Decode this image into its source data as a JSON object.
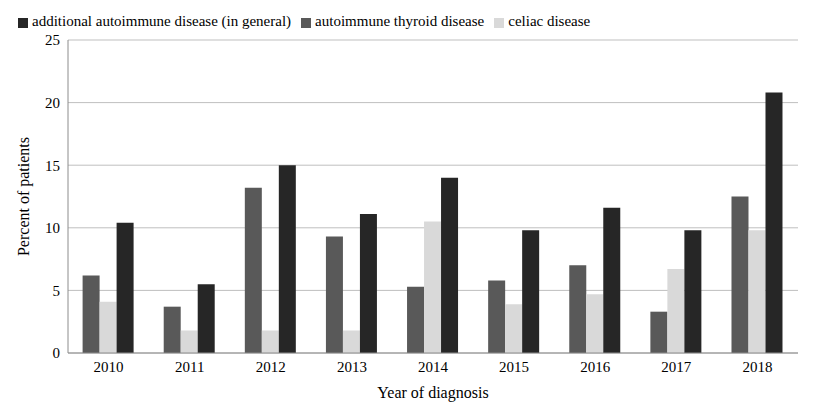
{
  "chart_data": {
    "type": "bar",
    "x_label": "Year of diagnosis",
    "y_label": "Percent of patients",
    "categories": [
      "2010",
      "2011",
      "2012",
      "2013",
      "2014",
      "2015",
      "2016",
      "2017",
      "2018"
    ],
    "series": [
      {
        "name": "autoimmune thyroid disease",
        "color": "#595959",
        "values": [
          6.2,
          3.7,
          13.2,
          9.3,
          5.3,
          5.8,
          7.0,
          3.3,
          12.5
        ]
      },
      {
        "name": "celiac disease",
        "color": "#d9d9d9",
        "values": [
          4.1,
          1.8,
          1.8,
          1.8,
          10.5,
          3.9,
          4.7,
          6.7,
          9.8
        ]
      },
      {
        "name": "additional autoimmune disease (in general)",
        "color": "#262626",
        "values": [
          10.4,
          5.5,
          15.0,
          11.1,
          14.0,
          9.8,
          11.6,
          9.8,
          20.8
        ]
      }
    ],
    "ylim": [
      0,
      25
    ],
    "yticks": [
      0,
      5,
      10,
      15,
      20,
      25
    ],
    "grid": true,
    "legend": "top"
  }
}
